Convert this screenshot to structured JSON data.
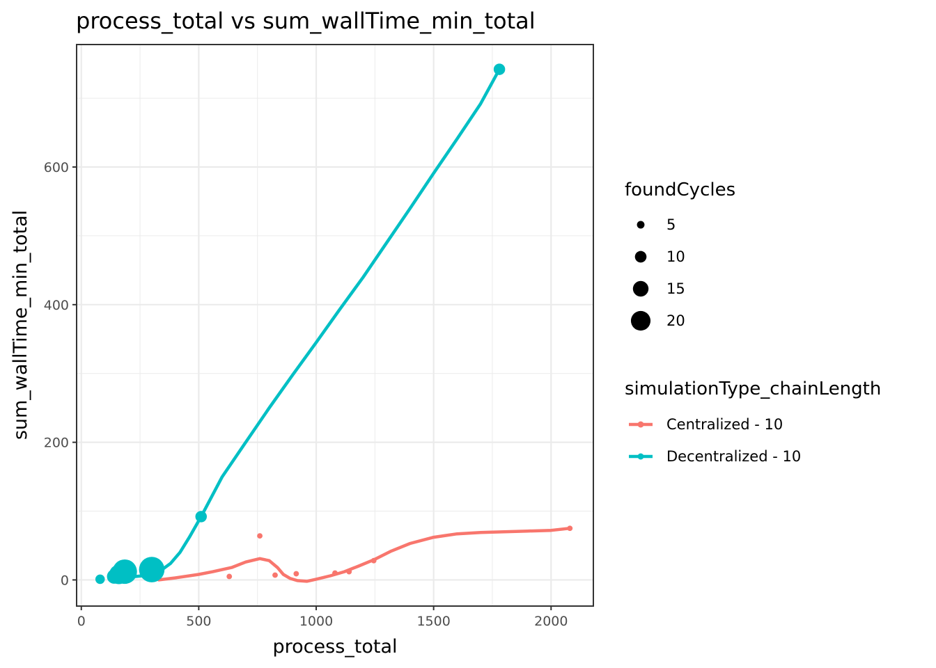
{
  "chart_data": {
    "type": "scatter",
    "title": "process_total  vs  sum_wallTime_min_total",
    "xlabel": "process_total",
    "ylabel": "sum_wallTime_min_total",
    "xlim": [
      -20,
      2180
    ],
    "ylim": [
      -38,
      778
    ],
    "x_ticks": [
      0,
      500,
      1000,
      1500,
      2000
    ],
    "y_ticks": [
      0,
      200,
      400,
      600
    ],
    "grid": true,
    "size_legend": {
      "title": "foundCycles",
      "entries": [
        {
          "label": "5",
          "value": 5
        },
        {
          "label": "10",
          "value": 10
        },
        {
          "label": "15",
          "value": 15
        },
        {
          "label": "20",
          "value": 20
        }
      ]
    },
    "color_legend": {
      "title": "simulationType_chainLength",
      "placement": "right"
    },
    "series": [
      {
        "name": "Centralized - 10",
        "color": "#F8766D",
        "points": [
          {
            "x": 630,
            "y": 5,
            "size": 1
          },
          {
            "x": 760,
            "y": 64,
            "size": 1
          },
          {
            "x": 825,
            "y": 7,
            "size": 1
          },
          {
            "x": 915,
            "y": 9,
            "size": 1
          },
          {
            "x": 1080,
            "y": 10,
            "size": 1
          },
          {
            "x": 1140,
            "y": 12,
            "size": 1
          },
          {
            "x": 1245,
            "y": 28,
            "size": 1
          },
          {
            "x": 2080,
            "y": 75,
            "size": 1
          }
        ],
        "smooth": [
          [
            330,
            0
          ],
          [
            400,
            3
          ],
          [
            500,
            8
          ],
          [
            560,
            12
          ],
          [
            640,
            18
          ],
          [
            700,
            26
          ],
          [
            760,
            31
          ],
          [
            800,
            28
          ],
          [
            835,
            18
          ],
          [
            860,
            8
          ],
          [
            890,
            2
          ],
          [
            920,
            -1
          ],
          [
            960,
            -2
          ],
          [
            1000,
            1
          ],
          [
            1060,
            6
          ],
          [
            1120,
            12
          ],
          [
            1180,
            20
          ],
          [
            1250,
            30
          ],
          [
            1320,
            42
          ],
          [
            1400,
            53
          ],
          [
            1500,
            62
          ],
          [
            1600,
            67
          ],
          [
            1700,
            69
          ],
          [
            1800,
            70
          ],
          [
            1900,
            71
          ],
          [
            2000,
            72
          ],
          [
            2080,
            75
          ]
        ]
      },
      {
        "name": "Decentralized - 10",
        "color": "#00BFC4",
        "points": [
          {
            "x": 80,
            "y": 1,
            "size": 5
          },
          {
            "x": 140,
            "y": 5,
            "size": 10
          },
          {
            "x": 160,
            "y": 8,
            "size": 15
          },
          {
            "x": 185,
            "y": 12,
            "size": 20
          },
          {
            "x": 300,
            "y": 15,
            "size": 21
          },
          {
            "x": 510,
            "y": 92,
            "size": 7
          },
          {
            "x": 1780,
            "y": 742,
            "size": 7
          }
        ],
        "smooth": [
          [
            150,
            3
          ],
          [
            200,
            4
          ],
          [
            260,
            6
          ],
          [
            300,
            9
          ],
          [
            340,
            14
          ],
          [
            380,
            24
          ],
          [
            420,
            40
          ],
          [
            460,
            62
          ],
          [
            510,
            92
          ],
          [
            600,
            150
          ],
          [
            700,
            200
          ],
          [
            800,
            250
          ],
          [
            900,
            298
          ],
          [
            1000,
            345
          ],
          [
            1100,
            393
          ],
          [
            1200,
            440
          ],
          [
            1300,
            490
          ],
          [
            1400,
            540
          ],
          [
            1500,
            591
          ],
          [
            1600,
            641
          ],
          [
            1700,
            692
          ],
          [
            1780,
            742
          ]
        ]
      }
    ]
  }
}
